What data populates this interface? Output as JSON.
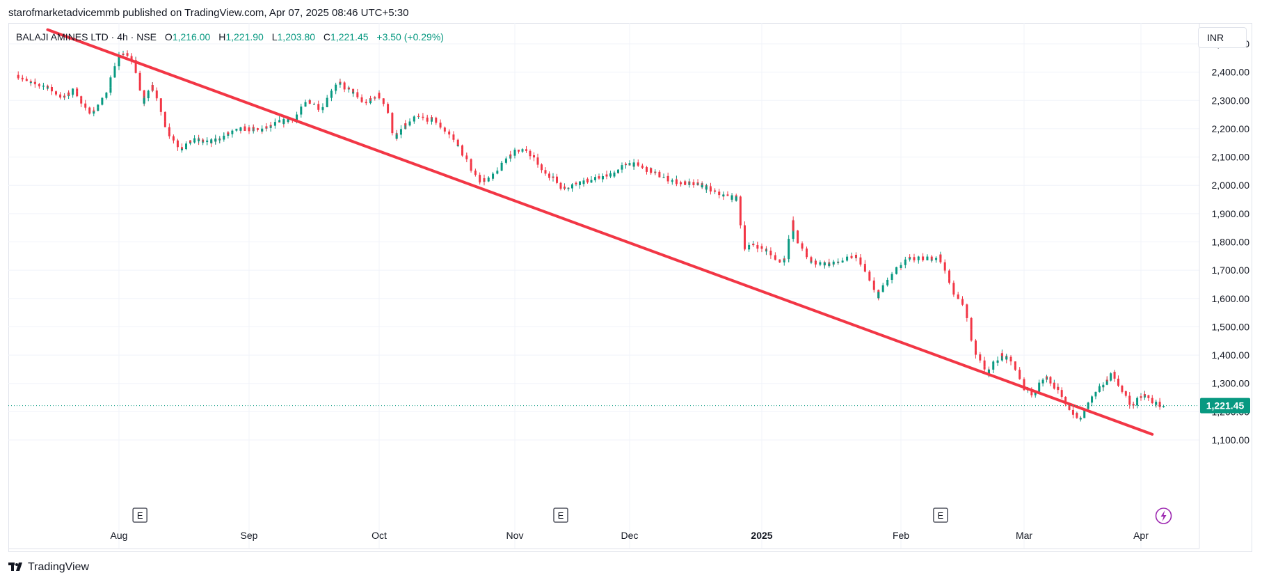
{
  "header": {
    "published_line": "starofmarketadvicemmb published on TradingView.com, Apr 07, 2025 08:46 UTC+5:30"
  },
  "legend": {
    "symbol": "BALAJI AMINES LTD · 4h · NSE",
    "open_label": "O",
    "open": "1,216.00",
    "high_label": "H",
    "high": "1,221.90",
    "low_label": "L",
    "low": "1,203.80",
    "close_label": "C",
    "close": "1,221.45",
    "change": "+3.50 (+0.29%)"
  },
  "currency_button": "INR",
  "branding": {
    "logo_icon": "tradingview-logo-icon",
    "name": "TradingView"
  },
  "colors": {
    "up": "#089981",
    "down": "#f23645",
    "trendline": "#f23645",
    "grid": "#f0f3fa",
    "price_tag": "#089981"
  },
  "chart_data": {
    "type": "candlestick",
    "title": "BALAJI AMINES LTD · 4h · NSE",
    "xlabel": "",
    "ylabel": "",
    "ylim": [
      1050,
      2550
    ],
    "y_ticks": [
      "2,500.00",
      "2,400.00",
      "2,300.00",
      "2,200.00",
      "2,100.00",
      "2,000.00",
      "1,900.00",
      "1,800.00",
      "1,700.00",
      "1,600.00",
      "1,500.00",
      "1,400.00",
      "1,300.00",
      "1,200.00",
      "1,100.00"
    ],
    "y_tick_values": [
      2500,
      2400,
      2300,
      2200,
      2100,
      2000,
      1900,
      1800,
      1700,
      1600,
      1500,
      1400,
      1300,
      1200,
      1100
    ],
    "x_ticks": [
      {
        "label": "Aug",
        "date": "2024-08-01",
        "bold": false
      },
      {
        "label": "Sep",
        "date": "2024-09-01",
        "bold": false
      },
      {
        "label": "Oct",
        "date": "2024-10-01",
        "bold": false
      },
      {
        "label": "Nov",
        "date": "2024-11-01",
        "bold": false
      },
      {
        "label": "Dec",
        "date": "2024-12-01",
        "bold": false
      },
      {
        "label": "2025",
        "date": "2025-01-01",
        "bold": true
      },
      {
        "label": "Feb",
        "date": "2025-02-01",
        "bold": false
      },
      {
        "label": "Mar",
        "date": "2025-03-01",
        "bold": false
      },
      {
        "label": "Apr",
        "date": "2025-04-01",
        "bold": false
      }
    ],
    "x_range": [
      "2024-07-07",
      "2025-04-25"
    ],
    "last_price": 1221.45,
    "last_price_label": "1,221.45",
    "earnings_markers": [
      {
        "date": "2024-08-06",
        "label": "E"
      },
      {
        "date": "2024-11-13",
        "label": "E"
      },
      {
        "date": "2025-02-10",
        "label": "E"
      }
    ],
    "flash_marker": {
      "date": "2025-04-07",
      "icon": "lightning-icon"
    },
    "trendline": {
      "start": {
        "date": "2024-07-15",
        "value": 2550
      },
      "end": {
        "date": "2025-04-04",
        "value": 1120
      }
    },
    "candle_path": [
      [
        "2024-07-08",
        2390
      ],
      [
        "2024-07-11",
        2360
      ],
      [
        "2024-07-15",
        2350
      ],
      [
        "2024-07-19",
        2310
      ],
      [
        "2024-07-22",
        2340
      ],
      [
        "2024-07-24",
        2270
      ],
      [
        "2024-07-26",
        2260
      ],
      [
        "2024-07-29",
        2310
      ],
      [
        "2024-07-31",
        2400
      ],
      [
        "2024-08-02",
        2470
      ],
      [
        "2024-08-05",
        2440
      ],
      [
        "2024-08-07",
        2290
      ],
      [
        "2024-08-09",
        2360
      ],
      [
        "2024-08-11",
        2280
      ],
      [
        "2024-08-13",
        2190
      ],
      [
        "2024-08-16",
        2130
      ],
      [
        "2024-08-19",
        2160
      ],
      [
        "2024-08-23",
        2150
      ],
      [
        "2024-08-27",
        2180
      ],
      [
        "2024-08-31",
        2200
      ],
      [
        "2024-09-04",
        2195
      ],
      [
        "2024-09-08",
        2220
      ],
      [
        "2024-09-12",
        2240
      ],
      [
        "2024-09-15",
        2300
      ],
      [
        "2024-09-18",
        2270
      ],
      [
        "2024-09-20",
        2330
      ],
      [
        "2024-09-22",
        2360
      ],
      [
        "2024-09-25",
        2330
      ],
      [
        "2024-09-28",
        2290
      ],
      [
        "2024-10-01",
        2320
      ],
      [
        "2024-10-03",
        2280
      ],
      [
        "2024-10-05",
        2160
      ],
      [
        "2024-10-07",
        2210
      ],
      [
        "2024-10-10",
        2240
      ],
      [
        "2024-10-14",
        2230
      ],
      [
        "2024-10-18",
        2170
      ],
      [
        "2024-10-21",
        2100
      ],
      [
        "2024-10-24",
        2020
      ],
      [
        "2024-10-27",
        2020
      ],
      [
        "2024-10-29",
        2070
      ],
      [
        "2024-10-31",
        2110
      ],
      [
        "2024-11-03",
        2130
      ],
      [
        "2024-11-06",
        2100
      ],
      [
        "2024-11-08",
        2060
      ],
      [
        "2024-11-11",
        2030
      ],
      [
        "2024-11-14",
        1990
      ],
      [
        "2024-11-18",
        2010
      ],
      [
        "2024-11-22",
        2020
      ],
      [
        "2024-11-27",
        2040
      ],
      [
        "2024-12-01",
        2080
      ],
      [
        "2024-12-05",
        2060
      ],
      [
        "2024-12-09",
        2030
      ],
      [
        "2024-12-13",
        2010
      ],
      [
        "2024-12-18",
        2000
      ],
      [
        "2024-12-22",
        1970
      ],
      [
        "2024-12-27",
        1950
      ],
      [
        "2024-12-28",
        1780
      ],
      [
        "2024-12-31",
        1790
      ],
      [
        "2025-01-03",
        1760
      ],
      [
        "2025-01-05",
        1730
      ],
      [
        "2025-01-07",
        1750
      ],
      [
        "2025-01-08",
        1870
      ],
      [
        "2025-01-09",
        1810
      ],
      [
        "2025-01-12",
        1730
      ],
      [
        "2025-01-17",
        1720
      ],
      [
        "2025-01-22",
        1750
      ],
      [
        "2025-01-24",
        1710
      ],
      [
        "2025-01-27",
        1610
      ],
      [
        "2025-01-30",
        1680
      ],
      [
        "2025-02-03",
        1740
      ],
      [
        "2025-02-07",
        1740
      ],
      [
        "2025-02-10",
        1750
      ],
      [
        "2025-02-13",
        1630
      ],
      [
        "2025-02-16",
        1560
      ],
      [
        "2025-02-18",
        1420
      ],
      [
        "2025-02-21",
        1340
      ],
      [
        "2025-02-24",
        1400
      ],
      [
        "2025-02-27",
        1370
      ],
      [
        "2025-03-01",
        1290
      ],
      [
        "2025-03-04",
        1260
      ],
      [
        "2025-03-07",
        1330
      ],
      [
        "2025-03-10",
        1280
      ],
      [
        "2025-03-13",
        1220
      ],
      [
        "2025-03-16",
        1170
      ],
      [
        "2025-03-19",
        1240
      ],
      [
        "2025-03-22",
        1290
      ],
      [
        "2025-03-25",
        1340
      ],
      [
        "2025-03-27",
        1280
      ],
      [
        "2025-03-30",
        1220
      ],
      [
        "2025-04-02",
        1260
      ],
      [
        "2025-04-05",
        1230
      ],
      [
        "2025-04-07",
        1221
      ]
    ]
  }
}
